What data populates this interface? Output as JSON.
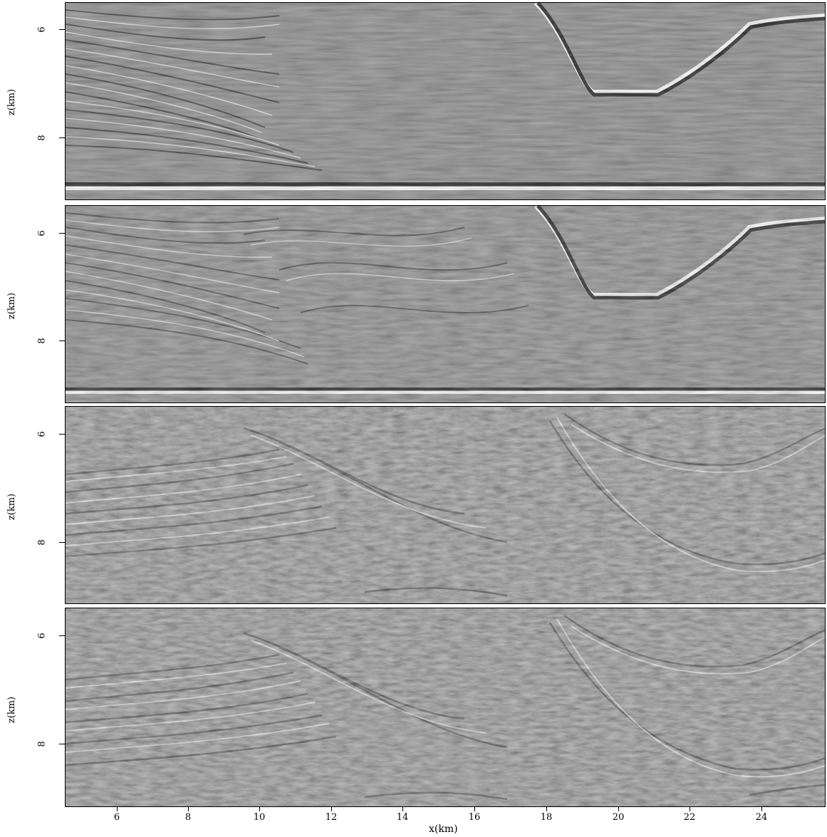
{
  "figure": {
    "panel_count": 4,
    "colormap": "grayscale",
    "y_axis_title": "z(km)",
    "x_axis_title": "x(km)",
    "y_ticks": [
      "6",
      "8"
    ],
    "x_ticks": [
      "6",
      "8",
      "10",
      "12",
      "14",
      "16",
      "18",
      "20",
      "22",
      "24"
    ]
  },
  "panels": [
    {
      "id": "panel-1",
      "y_axis_title": "z(km)"
    },
    {
      "id": "panel-2",
      "y_axis_title": "z(km)"
    },
    {
      "id": "panel-3",
      "y_axis_title": "z(km)"
    },
    {
      "id": "panel-4",
      "y_axis_title": "z(km)"
    }
  ]
}
